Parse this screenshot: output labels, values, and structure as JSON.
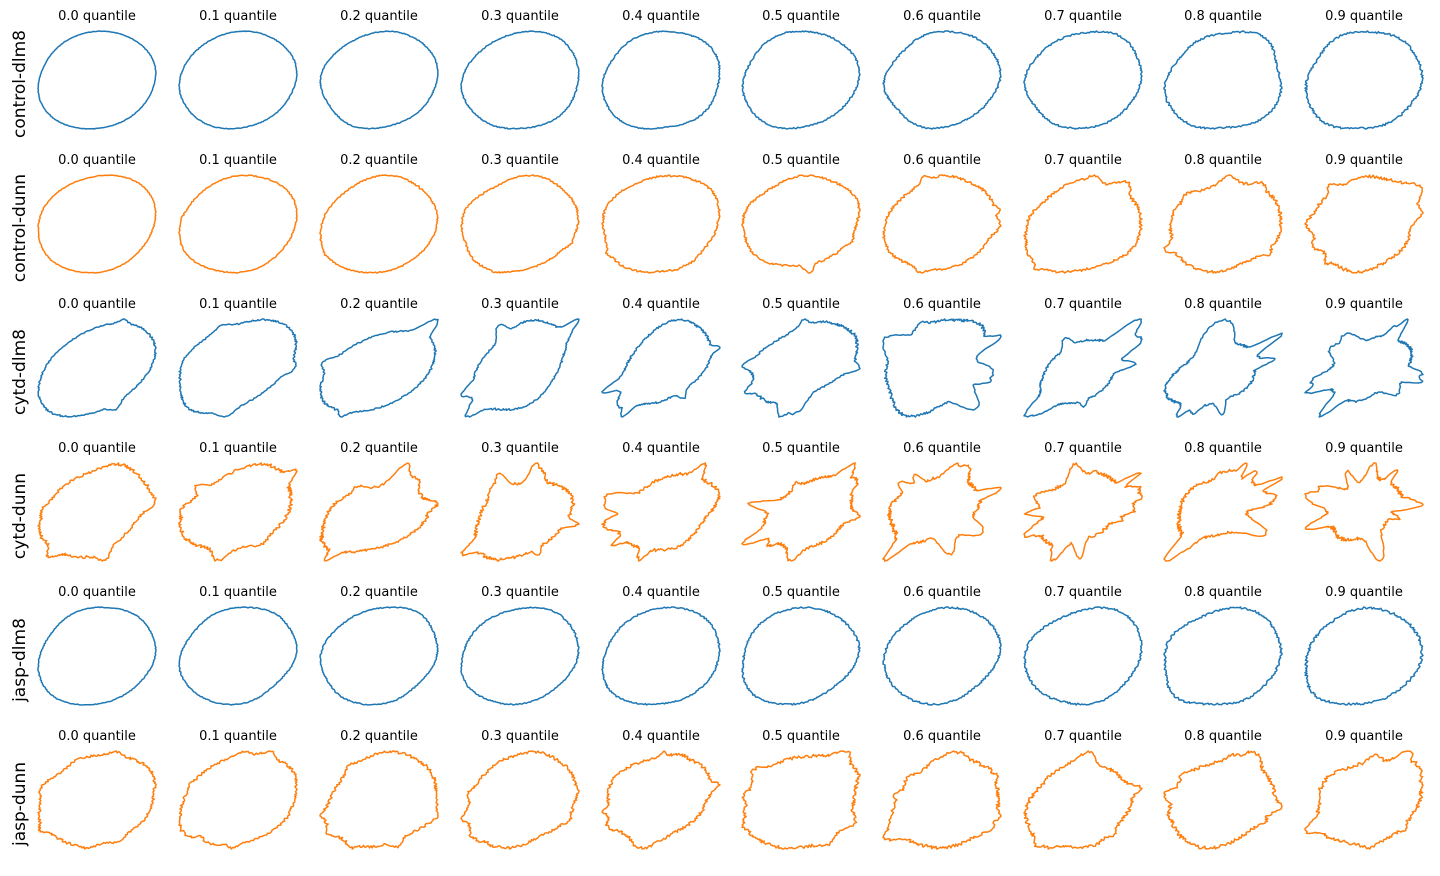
{
  "figure": {
    "quantiles": [
      "0.0 quantile",
      "0.1 quantile",
      "0.2 quantile",
      "0.3 quantile",
      "0.4 quantile",
      "0.5 quantile",
      "0.6 quantile",
      "0.7 quantile",
      "0.8 quantile",
      "0.9 quantile"
    ],
    "rows": [
      {
        "label": "control-dlm8",
        "color": "#1f77b4"
      },
      {
        "label": "control-dunn",
        "color": "#ff7f0e"
      },
      {
        "label": "cytd-dlm8",
        "color": "#1f77b4"
      },
      {
        "label": "cytd-dunn",
        "color": "#ff7f0e"
      },
      {
        "label": "jasp-dlm8",
        "color": "#1f77b4"
      },
      {
        "label": "jasp-dunn",
        "color": "#ff7f0e"
      }
    ]
  }
}
